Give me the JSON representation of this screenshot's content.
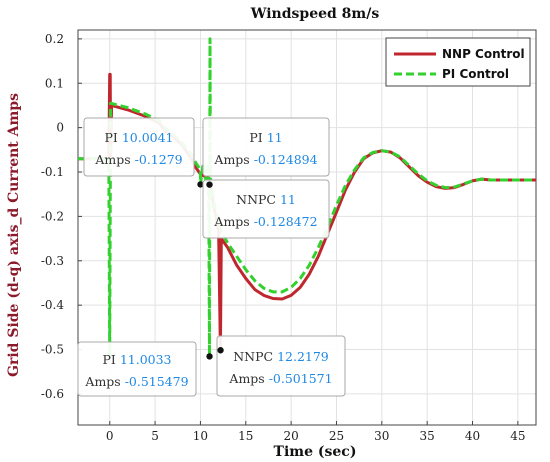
{
  "chart_data": {
    "type": "line",
    "title": "Windspeed 8m/s",
    "xlabel": "Time (sec)",
    "ylabel": "Grid Side (d-q) axis_d Current Amps",
    "xlim": [
      -3.5,
      47
    ],
    "ylim": [
      -0.67,
      0.22
    ],
    "xticks": [
      0,
      5,
      10,
      15,
      20,
      25,
      30,
      35,
      40,
      45
    ],
    "yticks": [
      0.2,
      0.1,
      0,
      -0.1,
      -0.2,
      -0.3,
      -0.4,
      -0.5,
      -0.6
    ],
    "ytick_labels": [
      "0.2",
      "0.1",
      "0",
      "-0.1",
      "-0.2",
      "-0.3",
      "-0.4",
      "-0.5",
      "-0.6"
    ],
    "grid": true,
    "legend_position": "top-right",
    "series": [
      {
        "name": "NNP Control",
        "color": "#c0262d",
        "style": "solid",
        "points": [
          [
            -3.5,
            -0.07
          ],
          [
            -0.1,
            -0.07
          ],
          [
            0,
            0.12
          ],
          [
            0.05,
            0.12
          ],
          [
            0.1,
            -0.07
          ],
          [
            0.2,
            0.05
          ],
          [
            2,
            0.04
          ],
          [
            4,
            0.025
          ],
          [
            5.5,
            0.01
          ],
          [
            6,
            -0.005
          ],
          [
            7,
            -0.02
          ],
          [
            8,
            -0.04
          ],
          [
            9,
            -0.07
          ],
          [
            9.5,
            -0.09
          ],
          [
            10,
            -0.105
          ],
          [
            10.5,
            -0.11
          ],
          [
            11,
            -0.115
          ],
          [
            11.5,
            -0.18
          ],
          [
            12,
            -0.23
          ],
          [
            12.2,
            -0.501571
          ],
          [
            12.3,
            -0.25
          ],
          [
            13,
            -0.27
          ],
          [
            14,
            -0.31
          ],
          [
            15,
            -0.34
          ],
          [
            16,
            -0.365
          ],
          [
            17,
            -0.378
          ],
          [
            18,
            -0.385
          ],
          [
            19,
            -0.386
          ],
          [
            20,
            -0.378
          ],
          [
            21,
            -0.36
          ],
          [
            22,
            -0.33
          ],
          [
            23,
            -0.29
          ],
          [
            24,
            -0.24
          ],
          [
            25,
            -0.19
          ],
          [
            26,
            -0.14
          ],
          [
            27,
            -0.1
          ],
          [
            28,
            -0.07
          ],
          [
            29,
            -0.057
          ],
          [
            30,
            -0.052
          ],
          [
            31,
            -0.055
          ],
          [
            32,
            -0.068
          ],
          [
            33,
            -0.088
          ],
          [
            34,
            -0.108
          ],
          [
            35,
            -0.123
          ],
          [
            36,
            -0.133
          ],
          [
            37,
            -0.137
          ],
          [
            38,
            -0.135
          ],
          [
            39,
            -0.128
          ],
          [
            40,
            -0.12
          ],
          [
            41,
            -0.116
          ],
          [
            42,
            -0.118
          ],
          [
            45,
            -0.118
          ],
          [
            47,
            -0.118
          ]
        ]
      },
      {
        "name": "PI Control",
        "color": "#33d12e",
        "style": "dashed",
        "points": [
          [
            -3.5,
            -0.07
          ],
          [
            -0.1,
            -0.07
          ],
          [
            0,
            -0.515479
          ],
          [
            0.1,
            0.055
          ],
          [
            2,
            0.045
          ],
          [
            4,
            0.03
          ],
          [
            5.5,
            0.015
          ],
          [
            6,
            0.0
          ],
          [
            7,
            -0.015
          ],
          [
            8,
            -0.035
          ],
          [
            9,
            -0.06
          ],
          [
            9.5,
            -0.08
          ],
          [
            10,
            -0.095
          ],
          [
            10.0041,
            -0.1279
          ],
          [
            10.3,
            -0.08
          ],
          [
            10.6,
            -0.12
          ],
          [
            10.9,
            -0.08
          ],
          [
            11.0033,
            -0.515479
          ],
          [
            11.05,
            0.2
          ],
          [
            11.1,
            -0.12
          ],
          [
            11.5,
            -0.17
          ],
          [
            12,
            -0.21
          ],
          [
            12.2,
            -0.23
          ],
          [
            13,
            -0.26
          ],
          [
            14,
            -0.29
          ],
          [
            15,
            -0.32
          ],
          [
            16,
            -0.345
          ],
          [
            17,
            -0.362
          ],
          [
            18,
            -0.37
          ],
          [
            19,
            -0.37
          ],
          [
            20,
            -0.36
          ],
          [
            21,
            -0.34
          ],
          [
            22,
            -0.31
          ],
          [
            23,
            -0.27
          ],
          [
            24,
            -0.225
          ],
          [
            25,
            -0.175
          ],
          [
            26,
            -0.13
          ],
          [
            27,
            -0.095
          ],
          [
            28,
            -0.068
          ],
          [
            29,
            -0.056
          ],
          [
            30,
            -0.052
          ],
          [
            31,
            -0.055
          ],
          [
            32,
            -0.066
          ],
          [
            33,
            -0.085
          ],
          [
            34,
            -0.104
          ],
          [
            35,
            -0.12
          ],
          [
            36,
            -0.13
          ],
          [
            37,
            -0.135
          ],
          [
            38,
            -0.134
          ],
          [
            39,
            -0.127
          ],
          [
            40,
            -0.12
          ],
          [
            41,
            -0.116
          ],
          [
            42,
            -0.118
          ],
          [
            45,
            -0.118
          ],
          [
            47,
            -0.118
          ]
        ]
      }
    ],
    "annotations": [
      {
        "label_a": "PI",
        "x": "10.0041",
        "label_b": "Amps",
        "y": "-0.1279",
        "px": 10.0041,
        "py": -0.1279
      },
      {
        "label_a": "PI",
        "x": "11",
        "label_b": "Amps",
        "y": "-0.124894",
        "px": 11,
        "py": -0.124894
      },
      {
        "label_a": "NNPC",
        "x": "11",
        "label_b": "Amps",
        "y": "-0.128472",
        "px": 11,
        "py": -0.128472
      },
      {
        "label_a": "PI",
        "x": "11.0033",
        "label_b": "Amps",
        "y": "-0.515479",
        "px": 11.0033,
        "py": -0.515479
      },
      {
        "label_a": "NNPC",
        "x": "12.2179",
        "label_b": "Amps",
        "y": "-0.501571",
        "px": 12.2179,
        "py": -0.501571
      }
    ]
  }
}
